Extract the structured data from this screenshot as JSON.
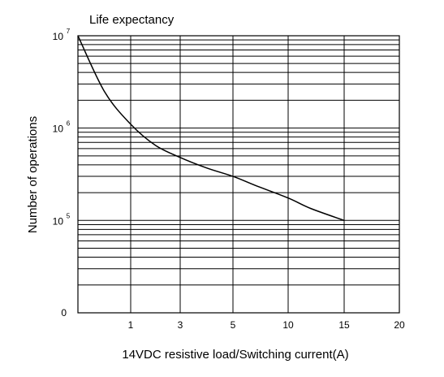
{
  "chart_data": {
    "type": "line",
    "title": "Life expectancy",
    "xlabel": "14VDC resistive load/Switching current(A)",
    "ylabel": "Number of operations",
    "x_scale": "categorical",
    "y_scale": "log",
    "x_ticks": [
      "1",
      "3",
      "5",
      "10",
      "15",
      "20"
    ],
    "y_ticks": [
      {
        "base": "10",
        "exp": "7"
      },
      {
        "base": "10",
        "exp": "6"
      },
      {
        "base": "10",
        "exp": "5"
      },
      {
        "base": "0",
        "exp": ""
      }
    ],
    "ylim": [
      10000,
      10000000
    ],
    "grid": true,
    "series": [
      {
        "values": [
          {
            "x": 0,
            "y": 10000000
          },
          {
            "x": 0.5,
            "y": 2500000
          },
          {
            "x": 1,
            "y": 1100000
          },
          {
            "x": 2,
            "y": 650000
          },
          {
            "x": 3,
            "y": 480000
          },
          {
            "x": 4,
            "y": 370000
          },
          {
            "x": 5,
            "y": 300000
          },
          {
            "x": 7,
            "y": 240000
          },
          {
            "x": 10,
            "y": 175000
          },
          {
            "x": 12,
            "y": 135000
          },
          {
            "x": 15,
            "y": 100000
          }
        ]
      }
    ]
  }
}
